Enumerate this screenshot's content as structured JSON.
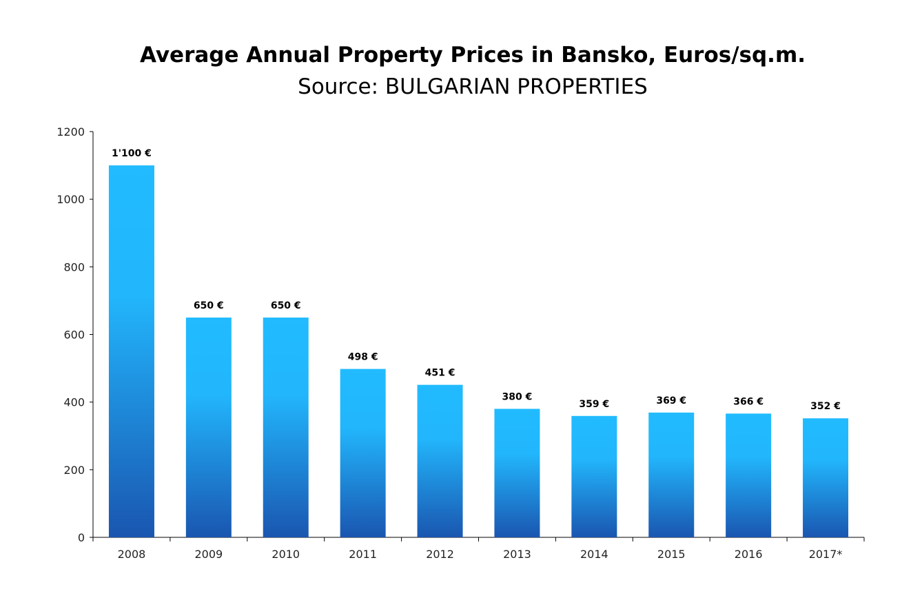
{
  "chart_data": {
    "type": "bar",
    "title": "Average Annual Property Prices in Bansko, Euros/sq.m.",
    "subtitle": "Source: BULGARIAN PROPERTIES",
    "categories": [
      "2008",
      "2009",
      "2010",
      "2011",
      "2012",
      "2013",
      "2014",
      "2015",
      "2016",
      "2017*"
    ],
    "values": [
      1100,
      650,
      650,
      498,
      451,
      380,
      359,
      369,
      366,
      352
    ],
    "data_labels": [
      "1'100 €",
      "650 €",
      "650 €",
      "498 €",
      "451 €",
      "380 €",
      "359 €",
      "369 €",
      "366 €",
      "352 €"
    ],
    "xlabel": "",
    "ylabel": "",
    "ylim": [
      0,
      1200
    ],
    "yticks": [
      0,
      200,
      400,
      600,
      800,
      1000,
      1200
    ],
    "grid": false,
    "colors": {
      "bar_top": "#22BBFF",
      "bar_bottom": "#1A56B0",
      "axis": "#000000"
    }
  }
}
